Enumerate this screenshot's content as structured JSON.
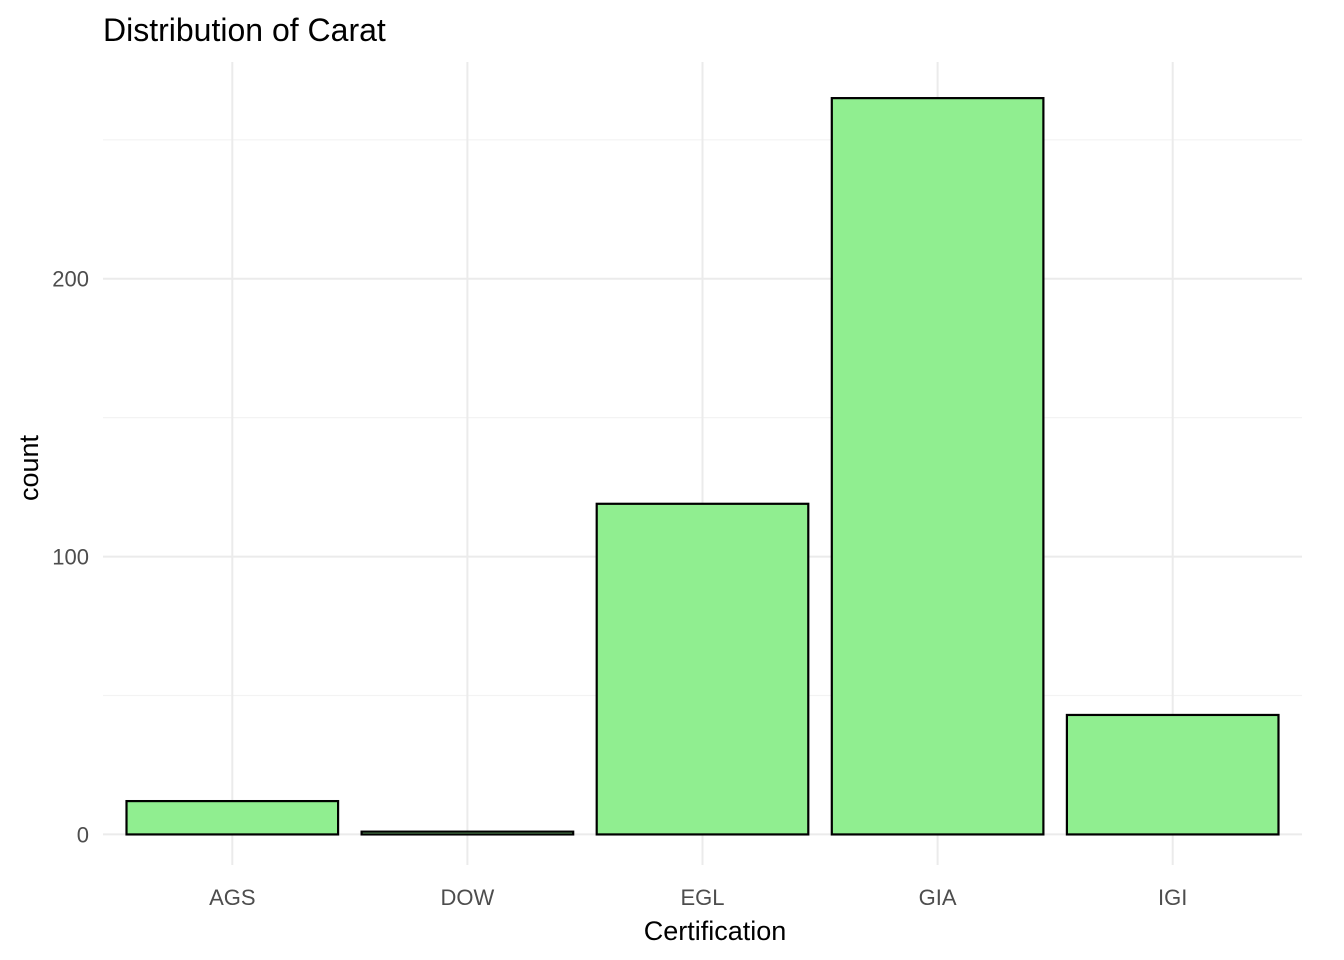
{
  "chart_data": {
    "type": "bar",
    "title": "Distribution of Carat",
    "xlabel": "Certification",
    "ylabel": "count",
    "categories": [
      "AGS",
      "DOW",
      "EGL",
      "GIA",
      "IGI"
    ],
    "values": [
      12,
      1,
      119,
      265,
      43
    ],
    "ylim": [
      -11,
      278
    ],
    "y_ticks": [
      0,
      100,
      200
    ],
    "y_tick_labels": [
      "0",
      "100",
      "200"
    ],
    "y_minor_ticks": [
      50,
      150,
      250
    ],
    "grid": true,
    "bar_fill": "#90ee90",
    "bar_stroke": "#000000"
  }
}
